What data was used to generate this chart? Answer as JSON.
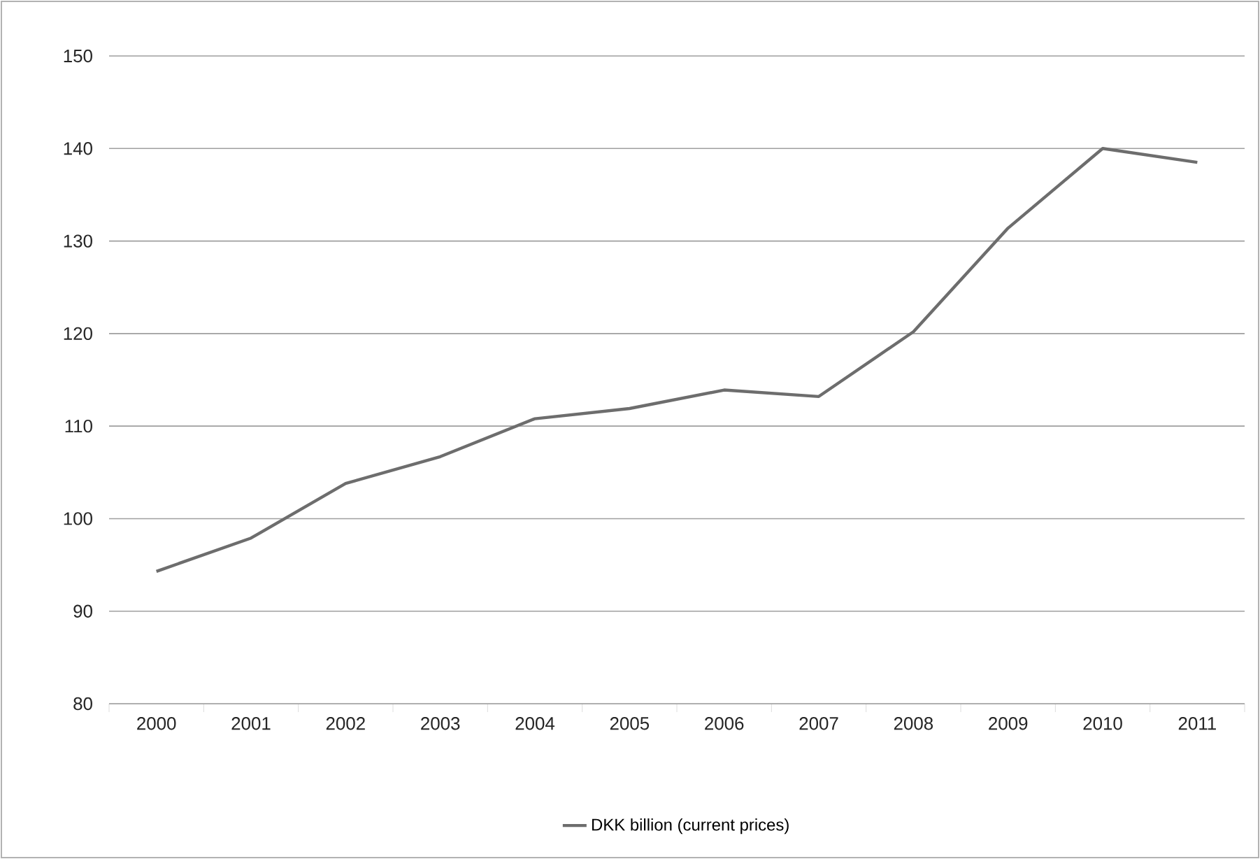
{
  "chart_data": {
    "type": "line",
    "categories": [
      "2000",
      "2001",
      "2002",
      "2003",
      "2004",
      "2005",
      "2006",
      "2007",
      "2008",
      "2009",
      "2010",
      "2011"
    ],
    "series": [
      {
        "name": "DKK billion (current prices)",
        "color": "#6d6d6d",
        "values": [
          94.3,
          97.9,
          103.8,
          106.7,
          110.8,
          111.9,
          113.9,
          113.2,
          120.2,
          131.4,
          140.0,
          138.5
        ]
      }
    ],
    "ylim": [
      80,
      150
    ],
    "yticks": [
      80,
      90,
      100,
      110,
      120,
      130,
      140,
      150
    ],
    "grid": "y",
    "legend": "bottom",
    "marker": "none",
    "line_style": "solid"
  }
}
